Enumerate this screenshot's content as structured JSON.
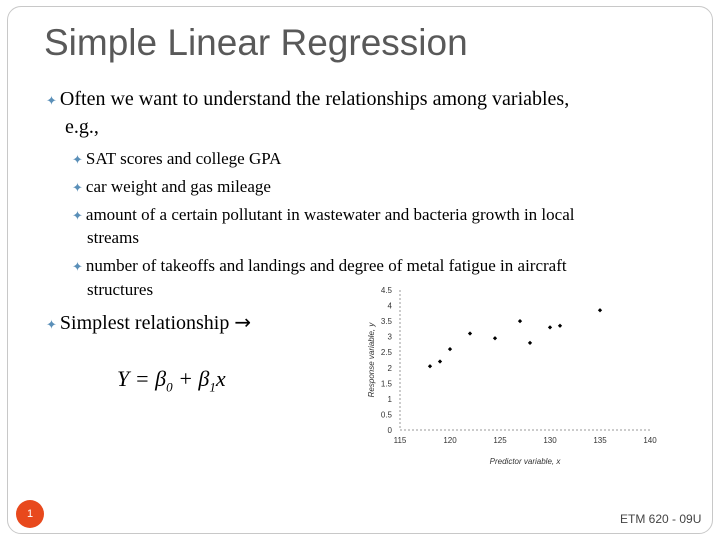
{
  "slide": {
    "title": "Simple Linear Regression",
    "bullet1_line1": "Often we want to understand the relationships among variables,",
    "bullet1_line2": "e.g.,",
    "sub_bullets": [
      {
        "line1": "SAT scores and college GPA",
        "line2": ""
      },
      {
        "line1": "car weight and gas mileage",
        "line2": ""
      },
      {
        "line1": "amount of a certain pollutant in wastewater and bacteria growth in local",
        "line2": "streams"
      },
      {
        "line1": "number of takeoffs and landings and degree of metal fatigue in aircraft",
        "line2": "structures"
      }
    ],
    "bullet2": "Simplest relationship",
    "arrow_icon": "right-arrow-icon",
    "formula": {
      "lhs": "Y = ",
      "beta0": "β",
      "sub0": "0",
      "plus": " + ",
      "beta1": "β",
      "sub1": "1",
      "x": "x"
    },
    "slide_number": "1",
    "footer": "ETM 620 - 09U",
    "colors": {
      "title": "#595959",
      "bullet": "#5a8fb8",
      "slide_number_bg": "#e8491d"
    }
  },
  "chart_data": {
    "type": "scatter",
    "xlabel": "Predictor variable, x",
    "ylabel": "Response variable, y",
    "xlim": [
      115,
      140
    ],
    "ylim": [
      0,
      4.5
    ],
    "x_ticks": [
      "115",
      "120",
      "125",
      "130",
      "135",
      "140"
    ],
    "y_ticks": [
      "0",
      "0.5",
      "1",
      "1.5",
      "2",
      "2.5",
      "3",
      "3.5",
      "4",
      "4.5"
    ],
    "points": [
      {
        "x": 118,
        "y": 2.05
      },
      {
        "x": 119,
        "y": 2.2
      },
      {
        "x": 120,
        "y": 2.6
      },
      {
        "x": 122,
        "y": 3.1
      },
      {
        "x": 124.5,
        "y": 2.95
      },
      {
        "x": 127,
        "y": 3.5
      },
      {
        "x": 128,
        "y": 2.8
      },
      {
        "x": 130,
        "y": 3.3
      },
      {
        "x": 131,
        "y": 3.35
      },
      {
        "x": 135,
        "y": 3.85
      }
    ]
  }
}
